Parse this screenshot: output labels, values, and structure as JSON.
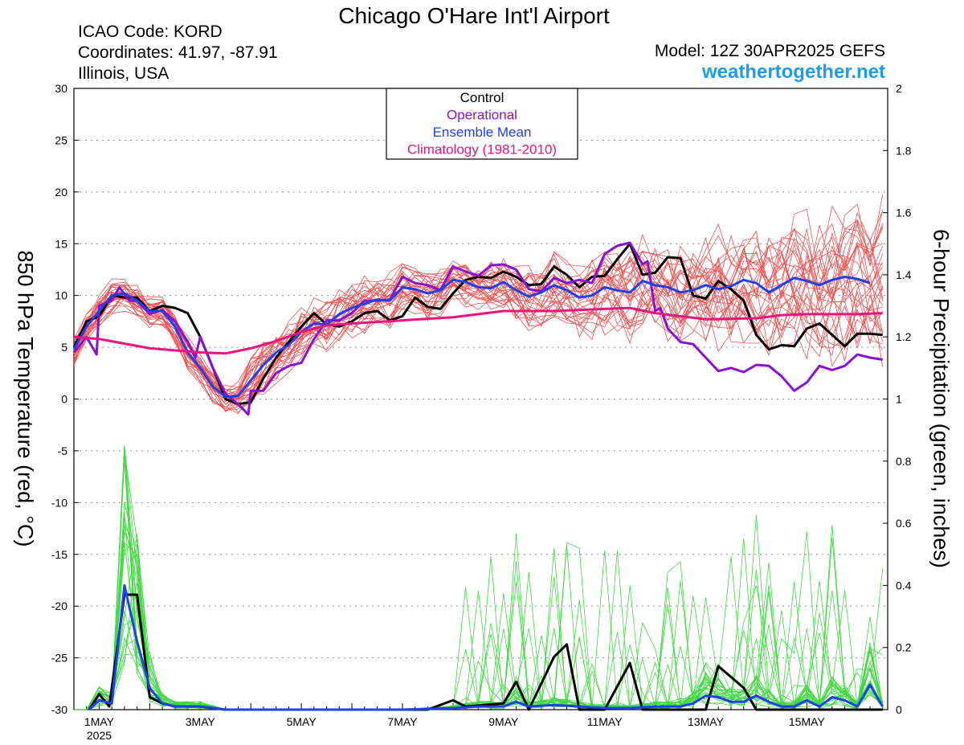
{
  "header": {
    "title": "Chicago O'Hare Int'l Airport",
    "icao": "ICAO Code: KORD",
    "coords": "Coordinates: 41.97, -87.91",
    "region": "Illinois, USA",
    "model": "Model: 12Z 30APR2025 GEFS",
    "site": "weathertogether.net"
  },
  "chart_data": {
    "type": "line",
    "title": "Chicago O'Hare Int'l Airport",
    "ylabel": "850 hPa Temperature (red, °C)",
    "y2label": "6-hour Precipitation (green, inches)",
    "ylim": [
      -30,
      30
    ],
    "y2lim": [
      0,
      2
    ],
    "yticks": [
      30,
      25,
      20,
      15,
      10,
      5,
      0,
      -5,
      -10,
      -15,
      -20,
      -25,
      -30
    ],
    "y2ticks": [
      2,
      1.8,
      1.6,
      1.4,
      1.2,
      1,
      0.8,
      0.6,
      0.4,
      0.2,
      0
    ],
    "xlim": [
      -0.5,
      15.6
    ],
    "xticks": [
      {
        "day": 0,
        "label": "1MAY",
        "sub": "2025"
      },
      {
        "day": 2,
        "label": "3MAY",
        "sub": ""
      },
      {
        "day": 4,
        "label": "5MAY",
        "sub": ""
      },
      {
        "day": 6,
        "label": "7MAY",
        "sub": ""
      },
      {
        "day": 8,
        "label": "9MAY",
        "sub": ""
      },
      {
        "day": 10,
        "label": "11MAY",
        "sub": ""
      },
      {
        "day": 12,
        "label": "13MAY",
        "sub": ""
      },
      {
        "day": 14,
        "label": "15MAY",
        "sub": ""
      }
    ],
    "x_units": "days since 1 May 2025 00Z",
    "grid": "dotted horizontal",
    "legend_position": "top-center",
    "legend": [
      {
        "name": "Control",
        "color": "#000000"
      },
      {
        "name": "Operational",
        "color": "#8a10d2"
      },
      {
        "name": "Ensemble Mean",
        "color": "#2040ee"
      },
      {
        "name": "Climatology (1981-2010)",
        "color": "#e8157e"
      }
    ],
    "series": [
      {
        "name": "Control",
        "kind": "temperature",
        "color": "#000000",
        "points": [
          [
            -0.5,
            5
          ],
          [
            -0.25,
            7.5
          ],
          [
            0,
            8
          ],
          [
            0.25,
            10
          ],
          [
            0.5,
            9.8
          ],
          [
            0.75,
            9.8
          ],
          [
            1,
            8.5
          ],
          [
            1.25,
            9
          ],
          [
            1.5,
            8.8
          ],
          [
            1.75,
            8.3
          ],
          [
            2,
            6
          ],
          [
            2.25,
            3
          ],
          [
            2.5,
            0
          ],
          [
            2.75,
            -0.5
          ],
          [
            3,
            -0.3
          ],
          [
            3.25,
            2
          ],
          [
            3.5,
            4
          ],
          [
            3.75,
            5.5
          ],
          [
            4,
            7
          ],
          [
            4.25,
            8.3
          ],
          [
            4.5,
            7.2
          ],
          [
            4.75,
            7
          ],
          [
            5,
            7.5
          ],
          [
            5.25,
            8.3
          ],
          [
            5.5,
            8.5
          ],
          [
            5.75,
            7.6
          ],
          [
            6,
            8
          ],
          [
            6.25,
            9.8
          ],
          [
            6.5,
            8.9
          ],
          [
            6.75,
            8.7
          ],
          [
            7,
            10.2
          ],
          [
            7.25,
            11.5
          ],
          [
            7.5,
            11.8
          ],
          [
            7.75,
            11.7
          ],
          [
            8,
            12.3
          ],
          [
            8.25,
            11.8
          ],
          [
            8.5,
            11
          ],
          [
            8.75,
            11.1
          ],
          [
            9,
            12.8
          ],
          [
            9.25,
            12
          ],
          [
            9.5,
            10.8
          ],
          [
            9.75,
            11.8
          ],
          [
            10,
            11.9
          ],
          [
            10.25,
            13.5
          ],
          [
            10.5,
            15
          ],
          [
            10.75,
            12
          ],
          [
            11,
            12.2
          ],
          [
            11.25,
            13.7
          ],
          [
            11.5,
            13.6
          ],
          [
            11.75,
            10
          ],
          [
            12,
            9.7
          ],
          [
            12.25,
            11.4
          ],
          [
            12.5,
            10.6
          ],
          [
            12.75,
            9.5
          ],
          [
            13,
            6.2
          ],
          [
            13.25,
            4.8
          ],
          [
            13.5,
            5.2
          ],
          [
            13.75,
            5.1
          ],
          [
            14,
            6.8
          ],
          [
            14.25,
            7.3
          ],
          [
            14.5,
            6.2
          ],
          [
            14.75,
            5.1
          ],
          [
            15,
            6.3
          ],
          [
            15.25,
            6.3
          ],
          [
            15.5,
            6.2
          ]
        ]
      },
      {
        "name": "Operational",
        "kind": "temperature",
        "color": "#8a10d2",
        "points": [
          [
            -0.5,
            4.5
          ],
          [
            -0.25,
            6
          ],
          [
            -0.05,
            4.3
          ],
          [
            0,
            9
          ],
          [
            0.25,
            9.5
          ],
          [
            0.4,
            10.8
          ],
          [
            0.6,
            9.5
          ],
          [
            0.75,
            9.5
          ],
          [
            1,
            8.2
          ],
          [
            1.25,
            8.6
          ],
          [
            1.5,
            7.5
          ],
          [
            1.75,
            5.5
          ],
          [
            1.9,
            4
          ],
          [
            2,
            6
          ],
          [
            2.25,
            3
          ],
          [
            2.5,
            0.5
          ],
          [
            2.75,
            -0.5
          ],
          [
            2.95,
            -1.5
          ],
          [
            3,
            0.8
          ],
          [
            3.25,
            0.8
          ],
          [
            3.5,
            2.5
          ],
          [
            3.75,
            3.2
          ],
          [
            4,
            3.5
          ],
          [
            4.25,
            5.8
          ],
          [
            4.5,
            7.6
          ],
          [
            4.75,
            7.6
          ],
          [
            5,
            8.3
          ],
          [
            5.25,
            9.5
          ],
          [
            5.5,
            9.5
          ],
          [
            5.75,
            9.6
          ],
          [
            6,
            11.8
          ],
          [
            6.25,
            11.2
          ],
          [
            6.5,
            11
          ],
          [
            6.75,
            10.5
          ],
          [
            7,
            12.8
          ],
          [
            7.25,
            12.3
          ],
          [
            7.5,
            11.9
          ],
          [
            7.75,
            12.9
          ],
          [
            8,
            13
          ],
          [
            8.25,
            12.5
          ],
          [
            8.5,
            10.6
          ],
          [
            8.75,
            10.4
          ],
          [
            9,
            11.7
          ],
          [
            9.25,
            11.2
          ],
          [
            9.5,
            11.5
          ],
          [
            9.75,
            11.2
          ],
          [
            10,
            14
          ],
          [
            10.25,
            14.8
          ],
          [
            10.5,
            15.1
          ],
          [
            10.75,
            13
          ],
          [
            10.85,
            13.3
          ],
          [
            11,
            8.5
          ],
          [
            11.1,
            8.8
          ],
          [
            11.25,
            6.8
          ],
          [
            11.5,
            5.5
          ],
          [
            11.75,
            5.3
          ],
          [
            12,
            4
          ],
          [
            12.25,
            2.7
          ],
          [
            12.5,
            3
          ],
          [
            12.75,
            2.6
          ],
          [
            13,
            3.3
          ],
          [
            13.25,
            3.2
          ],
          [
            13.5,
            2.2
          ],
          [
            13.75,
            0.8
          ],
          [
            14,
            1.6
          ],
          [
            14.25,
            3.2
          ],
          [
            14.5,
            2.8
          ],
          [
            14.75,
            3.2
          ],
          [
            15,
            4.3
          ],
          [
            15.25,
            4
          ],
          [
            15.5,
            3.8
          ]
        ]
      },
      {
        "name": "Ensemble Mean",
        "kind": "temperature",
        "color": "#2040ee",
        "points": [
          [
            -0.5,
            4.8
          ],
          [
            -0.25,
            7
          ],
          [
            0,
            8.5
          ],
          [
            0.25,
            10
          ],
          [
            0.5,
            10.2
          ],
          [
            0.75,
            9.5
          ],
          [
            1,
            8.5
          ],
          [
            1.25,
            8.5
          ],
          [
            1.5,
            7
          ],
          [
            1.75,
            4.5
          ],
          [
            2,
            3
          ],
          [
            2.25,
            1.2
          ],
          [
            2.5,
            0.2
          ],
          [
            2.75,
            0.3
          ],
          [
            3,
            1.8
          ],
          [
            3.25,
            3.3
          ],
          [
            3.5,
            4.5
          ],
          [
            3.75,
            5.2
          ],
          [
            4,
            6.5
          ],
          [
            4.25,
            7.3
          ],
          [
            4.5,
            7.2
          ],
          [
            4.75,
            8.2
          ],
          [
            5,
            8.8
          ],
          [
            5.25,
            9.2
          ],
          [
            5.5,
            9.6
          ],
          [
            5.75,
            9.5
          ],
          [
            6,
            10.8
          ],
          [
            6.25,
            10.6
          ],
          [
            6.5,
            10.2
          ],
          [
            6.75,
            10.5
          ],
          [
            7,
            11.5
          ],
          [
            7.25,
            11.3
          ],
          [
            7.5,
            10.8
          ],
          [
            7.75,
            10.7
          ],
          [
            8,
            11.3
          ],
          [
            8.25,
            10.5
          ],
          [
            8.5,
            9.9
          ],
          [
            8.75,
            10.3
          ],
          [
            9,
            11
          ],
          [
            9.25,
            10.5
          ],
          [
            9.5,
            9.8
          ],
          [
            9.75,
            10
          ],
          [
            10,
            10.8
          ],
          [
            10.25,
            10.5
          ],
          [
            10.5,
            10.3
          ],
          [
            10.75,
            11.4
          ],
          [
            11,
            11
          ],
          [
            11.25,
            10.8
          ],
          [
            11.5,
            10.3
          ],
          [
            11.75,
            10.5
          ],
          [
            12,
            11
          ],
          [
            12.25,
            10.6
          ],
          [
            12.5,
            10.9
          ],
          [
            12.75,
            11.5
          ],
          [
            13,
            11.2
          ],
          [
            13.25,
            10.3
          ],
          [
            13.5,
            11
          ],
          [
            13.75,
            11.7
          ],
          [
            14,
            11.4
          ],
          [
            14.25,
            11
          ],
          [
            14.5,
            11.5
          ],
          [
            14.75,
            11.8
          ],
          [
            15,
            11.6
          ],
          [
            15.25,
            11.2
          ]
        ]
      },
      {
        "name": "Climatology (1981-2010)",
        "kind": "temperature",
        "color": "#e8157e",
        "points": [
          [
            -0.5,
            6
          ],
          [
            0,
            5.8
          ],
          [
            1,
            4.9
          ],
          [
            2,
            4.5
          ],
          [
            2.5,
            4.4
          ],
          [
            3,
            4.9
          ],
          [
            3.5,
            5.6
          ],
          [
            4,
            6.5
          ],
          [
            4.5,
            7.1
          ],
          [
            5,
            7.3
          ],
          [
            6,
            7.6
          ],
          [
            7,
            7.9
          ],
          [
            8,
            8.5
          ],
          [
            9,
            8.5
          ],
          [
            10,
            8.7
          ],
          [
            10.5,
            8.8
          ],
          [
            11,
            8.3
          ],
          [
            12,
            7.7
          ],
          [
            13,
            7.8
          ],
          [
            13.5,
            8.1
          ],
          [
            14,
            8.2
          ],
          [
            15,
            8.2
          ],
          [
            15.5,
            8.3
          ]
        ]
      },
      {
        "name": "Control",
        "kind": "precipitation",
        "color": "#000000",
        "points": [
          [
            -0.2,
            0
          ],
          [
            0,
            0.05
          ],
          [
            0.2,
            0.01
          ],
          [
            0.5,
            0.37
          ],
          [
            0.75,
            0.37
          ],
          [
            1,
            0.04
          ],
          [
            1.25,
            0.02
          ],
          [
            1.5,
            0.01
          ],
          [
            2,
            0.01
          ],
          [
            2.5,
            0
          ],
          [
            3,
            0
          ],
          [
            5,
            0
          ],
          [
            6.5,
            0
          ],
          [
            7,
            0.03
          ],
          [
            7.25,
            0.01
          ],
          [
            8,
            0.02
          ],
          [
            8.25,
            0.09
          ],
          [
            8.5,
            0
          ],
          [
            9,
            0.17
          ],
          [
            9.25,
            0.21
          ],
          [
            9.5,
            0
          ],
          [
            10,
            0
          ],
          [
            10.5,
            0.15
          ],
          [
            10.75,
            0
          ],
          [
            12,
            0
          ],
          [
            12.25,
            0.14
          ],
          [
            12.75,
            0.07
          ],
          [
            13,
            0
          ],
          [
            13.5,
            0
          ],
          [
            15,
            0
          ],
          [
            15.5,
            0
          ]
        ]
      },
      {
        "name": "Ensemble Mean",
        "kind": "precipitation",
        "color": "#2040ee",
        "points": [
          [
            -0.2,
            0
          ],
          [
            0,
            0.03
          ],
          [
            0.25,
            0.02
          ],
          [
            0.5,
            0.4
          ],
          [
            0.75,
            0.22
          ],
          [
            1,
            0.07
          ],
          [
            1.25,
            0.02
          ],
          [
            1.5,
            0.01
          ],
          [
            2,
            0.01
          ],
          [
            2.5,
            0
          ],
          [
            3,
            0
          ],
          [
            6,
            0
          ],
          [
            7,
            0.005
          ],
          [
            7.5,
            0.01
          ],
          [
            8,
            0.01
          ],
          [
            8.25,
            0.025
          ],
          [
            8.5,
            0.01
          ],
          [
            9,
            0.015
          ],
          [
            9.5,
            0.01
          ],
          [
            10,
            0.005
          ],
          [
            10.5,
            0.005
          ],
          [
            11,
            0.01
          ],
          [
            11.5,
            0.01
          ],
          [
            11.75,
            0.02
          ],
          [
            12,
            0.045
          ],
          [
            12.25,
            0.04
          ],
          [
            12.5,
            0.025
          ],
          [
            12.75,
            0.025
          ],
          [
            13,
            0.045
          ],
          [
            13.25,
            0.025
          ],
          [
            13.5,
            0.01
          ],
          [
            13.75,
            0.01
          ],
          [
            14,
            0.03
          ],
          [
            14.25,
            0.01
          ],
          [
            14.5,
            0.04
          ],
          [
            14.75,
            0.03
          ],
          [
            15,
            0.01
          ],
          [
            15.25,
            0.08
          ],
          [
            15.5,
            0.01
          ]
        ]
      }
    ]
  }
}
